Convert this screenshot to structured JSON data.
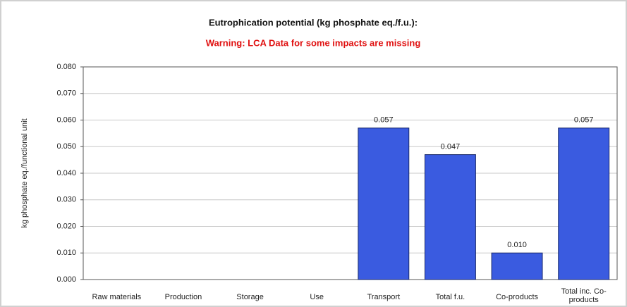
{
  "chart_data": {
    "type": "bar",
    "title": "Eutrophication potential (kg phosphate eq./f.u.):",
    "subtitle": "Warning: LCA Data for some impacts are missing",
    "y_label": "kg phosphate eq./functional unit",
    "categories": [
      "Raw materials",
      "Production",
      "Storage",
      "Use",
      "Transport",
      "Total f.u.",
      "Co-products",
      "Total inc. Co-products"
    ],
    "values": [
      null,
      null,
      null,
      null,
      0.057,
      0.047,
      0.01,
      0.057
    ],
    "value_labels": [
      null,
      null,
      null,
      null,
      "0.057",
      "0.047",
      "0.010",
      "0.057"
    ],
    "color": "#3a5be0",
    "ylim": [
      0,
      0.08
    ],
    "yticks": [
      {
        "value": 0,
        "label": "0.000"
      },
      {
        "value": 0.01,
        "label": "0.010"
      },
      {
        "value": 0.02,
        "label": "0.020"
      },
      {
        "value": 0.03,
        "label": "0.030"
      },
      {
        "value": 0.04,
        "label": "0.040"
      },
      {
        "value": 0.05,
        "label": "0.050"
      },
      {
        "value": 0.06,
        "label": "0.060"
      },
      {
        "value": 0.07,
        "label": "0.070"
      },
      {
        "value": 0.08,
        "label": "0.080"
      }
    ],
    "grid": true
  }
}
